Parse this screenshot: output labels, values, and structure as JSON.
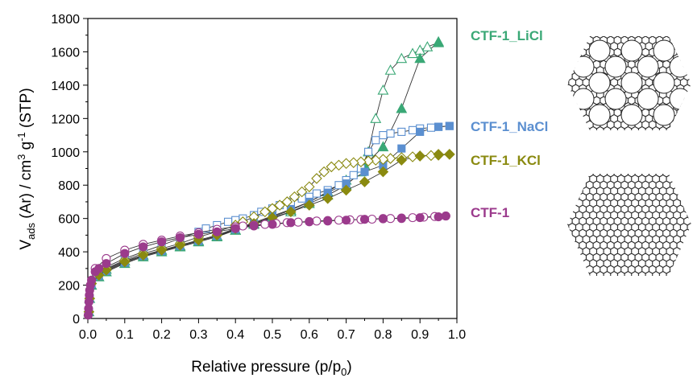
{
  "chart_data": {
    "type": "scatter",
    "xlabel": "Relative pressure (p/p",
    "xlabel_sub": "0",
    "xlabel_end": ")",
    "ylabel_parts": [
      "V",
      "ads",
      " (Ar) / cm",
      "3",
      " g",
      "-1",
      " (STP)"
    ],
    "xlim": [
      0.0,
      1.0
    ],
    "ylim": [
      0,
      1800
    ],
    "x_ticks": [
      "0.0",
      "0.1",
      "0.2",
      "0.3",
      "0.4",
      "0.5",
      "0.6",
      "0.7",
      "0.8",
      "0.9",
      "1.0"
    ],
    "y_ticks": [
      "0",
      "200",
      "400",
      "600",
      "800",
      "1000",
      "1200",
      "1400",
      "1600",
      "1800"
    ],
    "series": [
      {
        "name": "CTF-1_LiCl",
        "color": "#3aa876",
        "marker": "triangle",
        "adsorption": [
          [
            0.003,
            40
          ],
          [
            0.005,
            120
          ],
          [
            0.01,
            200
          ],
          [
            0.03,
            250
          ],
          [
            0.05,
            280
          ],
          [
            0.1,
            330
          ],
          [
            0.15,
            370
          ],
          [
            0.2,
            400
          ],
          [
            0.25,
            430
          ],
          [
            0.3,
            460
          ],
          [
            0.35,
            490
          ],
          [
            0.4,
            530
          ],
          [
            0.45,
            570
          ],
          [
            0.5,
            610
          ],
          [
            0.55,
            650
          ],
          [
            0.6,
            700
          ],
          [
            0.65,
            760
          ],
          [
            0.7,
            830
          ],
          [
            0.75,
            920
          ],
          [
            0.8,
            1030
          ],
          [
            0.85,
            1260
          ],
          [
            0.9,
            1560
          ],
          [
            0.95,
            1660
          ]
        ],
        "desorption": [
          [
            0.95,
            1655
          ],
          [
            0.92,
            1630
          ],
          [
            0.9,
            1610
          ],
          [
            0.88,
            1590
          ],
          [
            0.85,
            1560
          ],
          [
            0.82,
            1490
          ],
          [
            0.8,
            1370
          ],
          [
            0.78,
            1200
          ],
          [
            0.76,
            1000
          ],
          [
            0.74,
            880
          ],
          [
            0.7,
            800
          ],
          [
            0.65,
            740
          ],
          [
            0.6,
            690
          ],
          [
            0.55,
            640
          ],
          [
            0.5,
            600
          ],
          [
            0.45,
            565
          ],
          [
            0.4,
            530
          ],
          [
            0.35,
            495
          ],
          [
            0.3,
            465
          ],
          [
            0.25,
            435
          ],
          [
            0.2,
            410
          ],
          [
            0.15,
            380
          ],
          [
            0.1,
            345
          ],
          [
            0.05,
            295
          ],
          [
            0.02,
            260
          ]
        ]
      },
      {
        "name": "CTF-1_NaCl",
        "color": "#5b8fd0",
        "marker": "square",
        "adsorption": [
          [
            0.003,
            40
          ],
          [
            0.005,
            120
          ],
          [
            0.01,
            205
          ],
          [
            0.03,
            255
          ],
          [
            0.05,
            285
          ],
          [
            0.1,
            335
          ],
          [
            0.15,
            375
          ],
          [
            0.2,
            405
          ],
          [
            0.25,
            435
          ],
          [
            0.3,
            465
          ],
          [
            0.35,
            495
          ],
          [
            0.4,
            535
          ],
          [
            0.45,
            575
          ],
          [
            0.5,
            615
          ],
          [
            0.55,
            655
          ],
          [
            0.6,
            700
          ],
          [
            0.65,
            755
          ],
          [
            0.7,
            810
          ],
          [
            0.75,
            880
          ],
          [
            0.8,
            920
          ],
          [
            0.85,
            1020
          ],
          [
            0.9,
            1120
          ],
          [
            0.95,
            1150
          ],
          [
            0.98,
            1155
          ]
        ],
        "desorption": [
          [
            0.98,
            1155
          ],
          [
            0.95,
            1150
          ],
          [
            0.93,
            1145
          ],
          [
            0.9,
            1140
          ],
          [
            0.88,
            1130
          ],
          [
            0.85,
            1120
          ],
          [
            0.82,
            1110
          ],
          [
            0.8,
            1100
          ],
          [
            0.78,
            1070
          ],
          [
            0.76,
            1000
          ],
          [
            0.74,
            900
          ],
          [
            0.72,
            860
          ],
          [
            0.7,
            830
          ],
          [
            0.68,
            800
          ],
          [
            0.65,
            770
          ],
          [
            0.62,
            750
          ],
          [
            0.6,
            730
          ],
          [
            0.58,
            720
          ],
          [
            0.55,
            700
          ],
          [
            0.52,
            680
          ],
          [
            0.5,
            660
          ],
          [
            0.47,
            640
          ],
          [
            0.45,
            620
          ],
          [
            0.42,
            600
          ],
          [
            0.4,
            590
          ],
          [
            0.38,
            580
          ],
          [
            0.35,
            560
          ],
          [
            0.32,
            540
          ],
          [
            0.3,
            520
          ],
          [
            0.25,
            480
          ],
          [
            0.2,
            440
          ],
          [
            0.15,
            400
          ],
          [
            0.1,
            360
          ],
          [
            0.05,
            310
          ]
        ]
      },
      {
        "name": "CTF-1_KCl",
        "color": "#8a8a10",
        "marker": "diamond",
        "adsorption": [
          [
            0.003,
            40
          ],
          [
            0.005,
            120
          ],
          [
            0.01,
            210
          ],
          [
            0.03,
            260
          ],
          [
            0.05,
            290
          ],
          [
            0.1,
            340
          ],
          [
            0.15,
            380
          ],
          [
            0.2,
            410
          ],
          [
            0.25,
            440
          ],
          [
            0.3,
            470
          ],
          [
            0.35,
            500
          ],
          [
            0.4,
            540
          ],
          [
            0.45,
            570
          ],
          [
            0.5,
            605
          ],
          [
            0.55,
            640
          ],
          [
            0.6,
            680
          ],
          [
            0.65,
            720
          ],
          [
            0.7,
            770
          ],
          [
            0.75,
            820
          ],
          [
            0.8,
            880
          ],
          [
            0.85,
            950
          ],
          [
            0.9,
            975
          ],
          [
            0.95,
            985
          ],
          [
            0.98,
            985
          ]
        ],
        "desorption": [
          [
            0.98,
            985
          ],
          [
            0.95,
            980
          ],
          [
            0.93,
            978
          ],
          [
            0.9,
            975
          ],
          [
            0.88,
            970
          ],
          [
            0.85,
            965
          ],
          [
            0.82,
            960
          ],
          [
            0.8,
            955
          ],
          [
            0.78,
            950
          ],
          [
            0.76,
            945
          ],
          [
            0.74,
            940
          ],
          [
            0.72,
            935
          ],
          [
            0.7,
            930
          ],
          [
            0.68,
            920
          ],
          [
            0.66,
            910
          ],
          [
            0.64,
            880
          ],
          [
            0.62,
            840
          ],
          [
            0.6,
            790
          ],
          [
            0.58,
            760
          ],
          [
            0.56,
            730
          ],
          [
            0.54,
            700
          ],
          [
            0.52,
            680
          ],
          [
            0.5,
            660
          ],
          [
            0.48,
            640
          ],
          [
            0.45,
            610
          ],
          [
            0.42,
            580
          ],
          [
            0.4,
            560
          ],
          [
            0.35,
            520
          ],
          [
            0.3,
            490
          ],
          [
            0.25,
            450
          ],
          [
            0.2,
            420
          ],
          [
            0.15,
            390
          ],
          [
            0.1,
            350
          ],
          [
            0.05,
            300
          ]
        ]
      },
      {
        "name": "CTF-1",
        "color": "#9b3a8c",
        "marker": "circle",
        "adsorption": [
          [
            0.001,
            20
          ],
          [
            0.002,
            60
          ],
          [
            0.003,
            100
          ],
          [
            0.004,
            140
          ],
          [
            0.005,
            170
          ],
          [
            0.007,
            200
          ],
          [
            0.01,
            230
          ],
          [
            0.02,
            280
          ],
          [
            0.03,
            300
          ],
          [
            0.05,
            330
          ],
          [
            0.1,
            390
          ],
          [
            0.15,
            430
          ],
          [
            0.2,
            460
          ],
          [
            0.25,
            485
          ],
          [
            0.3,
            505
          ],
          [
            0.35,
            520
          ],
          [
            0.4,
            540
          ],
          [
            0.45,
            555
          ],
          [
            0.5,
            565
          ],
          [
            0.55,
            575
          ],
          [
            0.6,
            580
          ],
          [
            0.65,
            585
          ],
          [
            0.7,
            590
          ],
          [
            0.75,
            595
          ],
          [
            0.8,
            600
          ],
          [
            0.85,
            600
          ],
          [
            0.9,
            605
          ],
          [
            0.95,
            610
          ],
          [
            0.97,
            615
          ]
        ],
        "desorption": [
          [
            0.97,
            615
          ],
          [
            0.94,
            612
          ],
          [
            0.91,
            608
          ],
          [
            0.88,
            605
          ],
          [
            0.85,
            603
          ],
          [
            0.82,
            600
          ],
          [
            0.8,
            598
          ],
          [
            0.77,
            596
          ],
          [
            0.74,
            594
          ],
          [
            0.71,
            592
          ],
          [
            0.68,
            590
          ],
          [
            0.65,
            588
          ],
          [
            0.62,
            585
          ],
          [
            0.6,
            582
          ],
          [
            0.57,
            578
          ],
          [
            0.54,
            575
          ],
          [
            0.51,
            570
          ],
          [
            0.48,
            565
          ],
          [
            0.45,
            560
          ],
          [
            0.42,
            555
          ],
          [
            0.4,
            550
          ],
          [
            0.35,
            535
          ],
          [
            0.3,
            515
          ],
          [
            0.25,
            495
          ],
          [
            0.2,
            470
          ],
          [
            0.15,
            445
          ],
          [
            0.1,
            410
          ],
          [
            0.05,
            360
          ],
          [
            0.02,
            300
          ]
        ]
      }
    ],
    "legend_placement": "right, next to curves"
  }
}
